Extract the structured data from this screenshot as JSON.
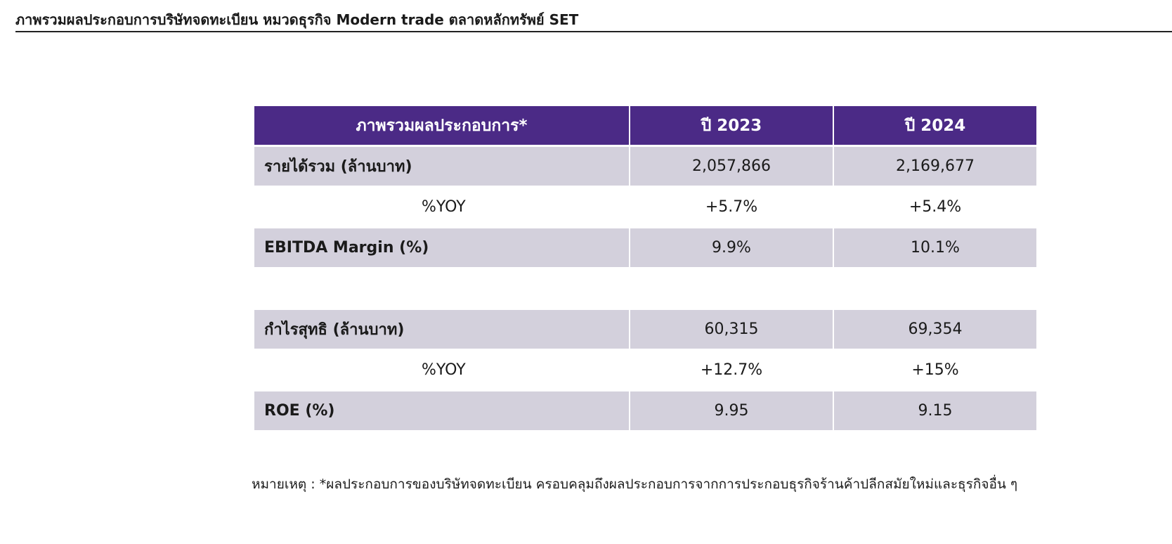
{
  "header": {
    "title": "ภาพรวมผลประกอบการบริษัทจดทะเบียน หมวดธุรกิจ Modern trade ตลาดหลักทรัพย์ SET"
  },
  "table": {
    "columns": [
      "ภาพรวมผลประกอบการ*",
      "ปี 2023",
      "ปี 2024"
    ],
    "rows": [
      {
        "label": "รายได้รวม (ล้านบาท)",
        "y2023": "2,057,866",
        "y2024": "2,169,677"
      },
      {
        "label": "%YOY",
        "y2023": "+5.7%",
        "y2024": "+5.4%"
      },
      {
        "label": "EBITDA Margin (%)",
        "y2023": "9.9%",
        "y2024": "10.1%"
      },
      {
        "label": "กำไรสุทธิ (ล้านบาท)",
        "y2023": "60,315",
        "y2024": "69,354"
      },
      {
        "label": "%YOY",
        "y2023": "+12.7%",
        "y2024": "+15%"
      },
      {
        "label": "ROE (%)",
        "y2023": "9.95",
        "y2024": "9.15"
      }
    ]
  },
  "footnote": "หมายเหตุ : *ผลประกอบการของบริษัทจดทะเบียน ครอบคลุมถึงผลประกอบการจากการประกอบธุรกิจร้านค้าปลีกสมัยใหม่และธุรกิจอื่น ๆ",
  "colors": {
    "header_bg": "#4b2a86",
    "header_text": "#ffffff",
    "shaded_row_bg": "#d3d0dc"
  }
}
